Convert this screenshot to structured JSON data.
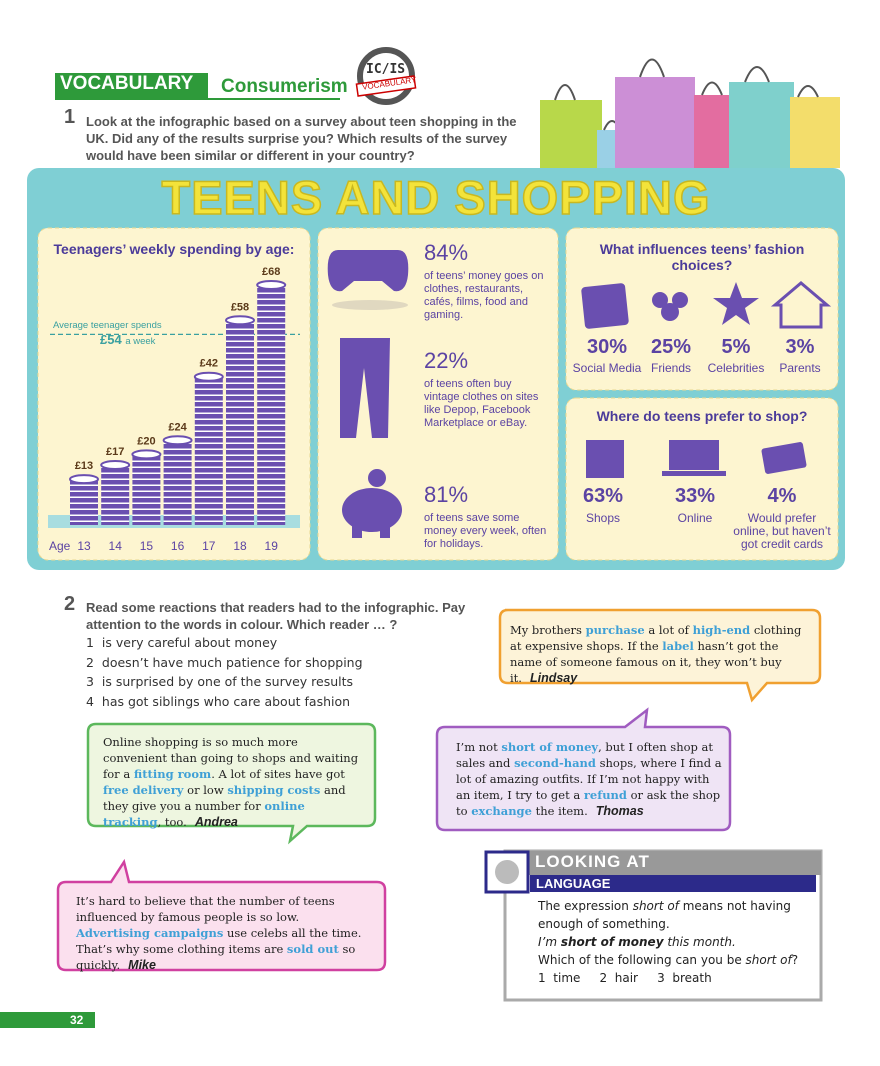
{
  "header": {
    "section": "VOCABULARY",
    "topic": "Consumerism",
    "badge_top": "IC/IS",
    "badge_bottom": "VOCABULARY"
  },
  "exercise1": {
    "number": "1",
    "text": "Look at the infographic based on a survey about teen shopping in the UK. Did any of the results surprise you? Which results of the survey would have been similar or different in your country?"
  },
  "infographic": {
    "title": "TEENS AND SHOPPING",
    "spending": {
      "title": "Teenagers’ weekly spending by age:",
      "axis_label": "Age",
      "categories": [
        "13",
        "14",
        "15",
        "16",
        "17",
        "18",
        "19"
      ],
      "values": [
        13,
        17,
        20,
        24,
        42,
        58,
        68
      ],
      "value_labels": [
        "£13",
        "£17",
        "£20",
        "£24",
        "£42",
        "£58",
        "£68"
      ],
      "average_label": "Average teenager spends",
      "average": 54,
      "average_value_label": "£54",
      "average_unit": "a week"
    },
    "facts": [
      {
        "percent": "84%",
        "text": "of teens’ money goes on clothes, restaurants, cafés, films, food and gaming."
      },
      {
        "percent": "22%",
        "text": "of teens often buy vintage clothes on sites like Depop, Facebook Marketplace or eBay."
      },
      {
        "percent": "81%",
        "text": "of teens save some money every week, often for holidays."
      }
    ],
    "influences": {
      "title": "What influences teens’ fashion choices?",
      "items": [
        {
          "percent": "30%",
          "label": "Social Media"
        },
        {
          "percent": "25%",
          "label": "Friends"
        },
        {
          "percent": "5%",
          "label": "Celebrities"
        },
        {
          "percent": "3%",
          "label": "Parents"
        }
      ]
    },
    "shops": {
      "title": "Where do teens prefer to shop?",
      "items": [
        {
          "percent": "63%",
          "label": "Shops"
        },
        {
          "percent": "33%",
          "label": "Online"
        },
        {
          "percent": "4%",
          "label": "Would prefer online, but haven’t got credit cards"
        }
      ]
    }
  },
  "exercise2": {
    "number": "2",
    "text": "Read some reactions that readers had to the infographic. Pay attention to the words in colour. Which reader … ?",
    "items": [
      {
        "number": "1",
        "text": "is very careful about money"
      },
      {
        "number": "2",
        "text": "doesn’t have much patience for shopping"
      },
      {
        "number": "3",
        "text": "is surprised by one of the survey results"
      },
      {
        "number": "4",
        "text": "has got siblings who care about fashion"
      }
    ]
  },
  "comments": [
    {
      "reader": "Lindsay",
      "segments": [
        {
          "text": "My brothers "
        },
        {
          "text": "purchase",
          "style": "hl"
        },
        {
          "text": " a lot of "
        },
        {
          "text": "high-end",
          "style": "hl"
        },
        {
          "text": " clothing at expensive shops. If the "
        },
        {
          "text": "label",
          "style": "hl"
        },
        {
          "text": " hasn’t got the name of someone famous on it, they won’t buy it."
        }
      ]
    },
    {
      "reader": "Andrea",
      "segments": [
        {
          "text": "Online shopping is so much more convenient than going to shops and waiting for a "
        },
        {
          "text": "fitting room",
          "style": "hl"
        },
        {
          "text": ". A lot of sites have got "
        },
        {
          "text": "free delivery",
          "style": "hl"
        },
        {
          "text": " or low "
        },
        {
          "text": "shipping costs",
          "style": "hl"
        },
        {
          "text": " and they give you a number for "
        },
        {
          "text": "online tracking",
          "style": "hl"
        },
        {
          "text": ", too."
        }
      ]
    },
    {
      "reader": "Thomas",
      "segments": [
        {
          "text": "I’m not "
        },
        {
          "text": "short of money",
          "style": "hl"
        },
        {
          "text": ", but I often shop at sales and "
        },
        {
          "text": "second-hand",
          "style": "hl"
        },
        {
          "text": " shops, where I find a lot of amazing outfits. If I’m not happy with an item, I try to get a "
        },
        {
          "text": "refund",
          "style": "hl"
        },
        {
          "text": " or ask the shop to "
        },
        {
          "text": "exchange",
          "style": "hl"
        },
        {
          "text": " the item."
        }
      ]
    },
    {
      "reader": "Mike",
      "segments": [
        {
          "text": "It’s hard to believe that the number of teens influenced by famous people is so low. "
        },
        {
          "text": "Advertising campaigns",
          "style": "hl"
        },
        {
          "text": " use celebs all the time. That’s why some clothing items are "
        },
        {
          "text": "sold out",
          "style": "hl"
        },
        {
          "text": " so quickly."
        }
      ]
    }
  ],
  "language_box": {
    "title_1": "LOOKING AT",
    "title_2": "LANGUAGE",
    "lines": [
      [
        {
          "text": "The expression "
        },
        {
          "text": "short of",
          "style": "i"
        },
        {
          "text": " means not having enough of something."
        }
      ],
      [
        {
          "text": "I’m ",
          "style": "i"
        },
        {
          "text": "short of money",
          "style": "bi"
        },
        {
          "text": " this month.",
          "style": "i"
        }
      ],
      [
        {
          "text": "Which of the following can you be "
        },
        {
          "text": "short of",
          "style": "i"
        },
        {
          "text": "?"
        }
      ]
    ],
    "options": [
      {
        "number": "1",
        "text": "time"
      },
      {
        "number": "2",
        "text": "hair"
      },
      {
        "number": "3",
        "text": "breath"
      }
    ]
  },
  "page_number": "32"
}
